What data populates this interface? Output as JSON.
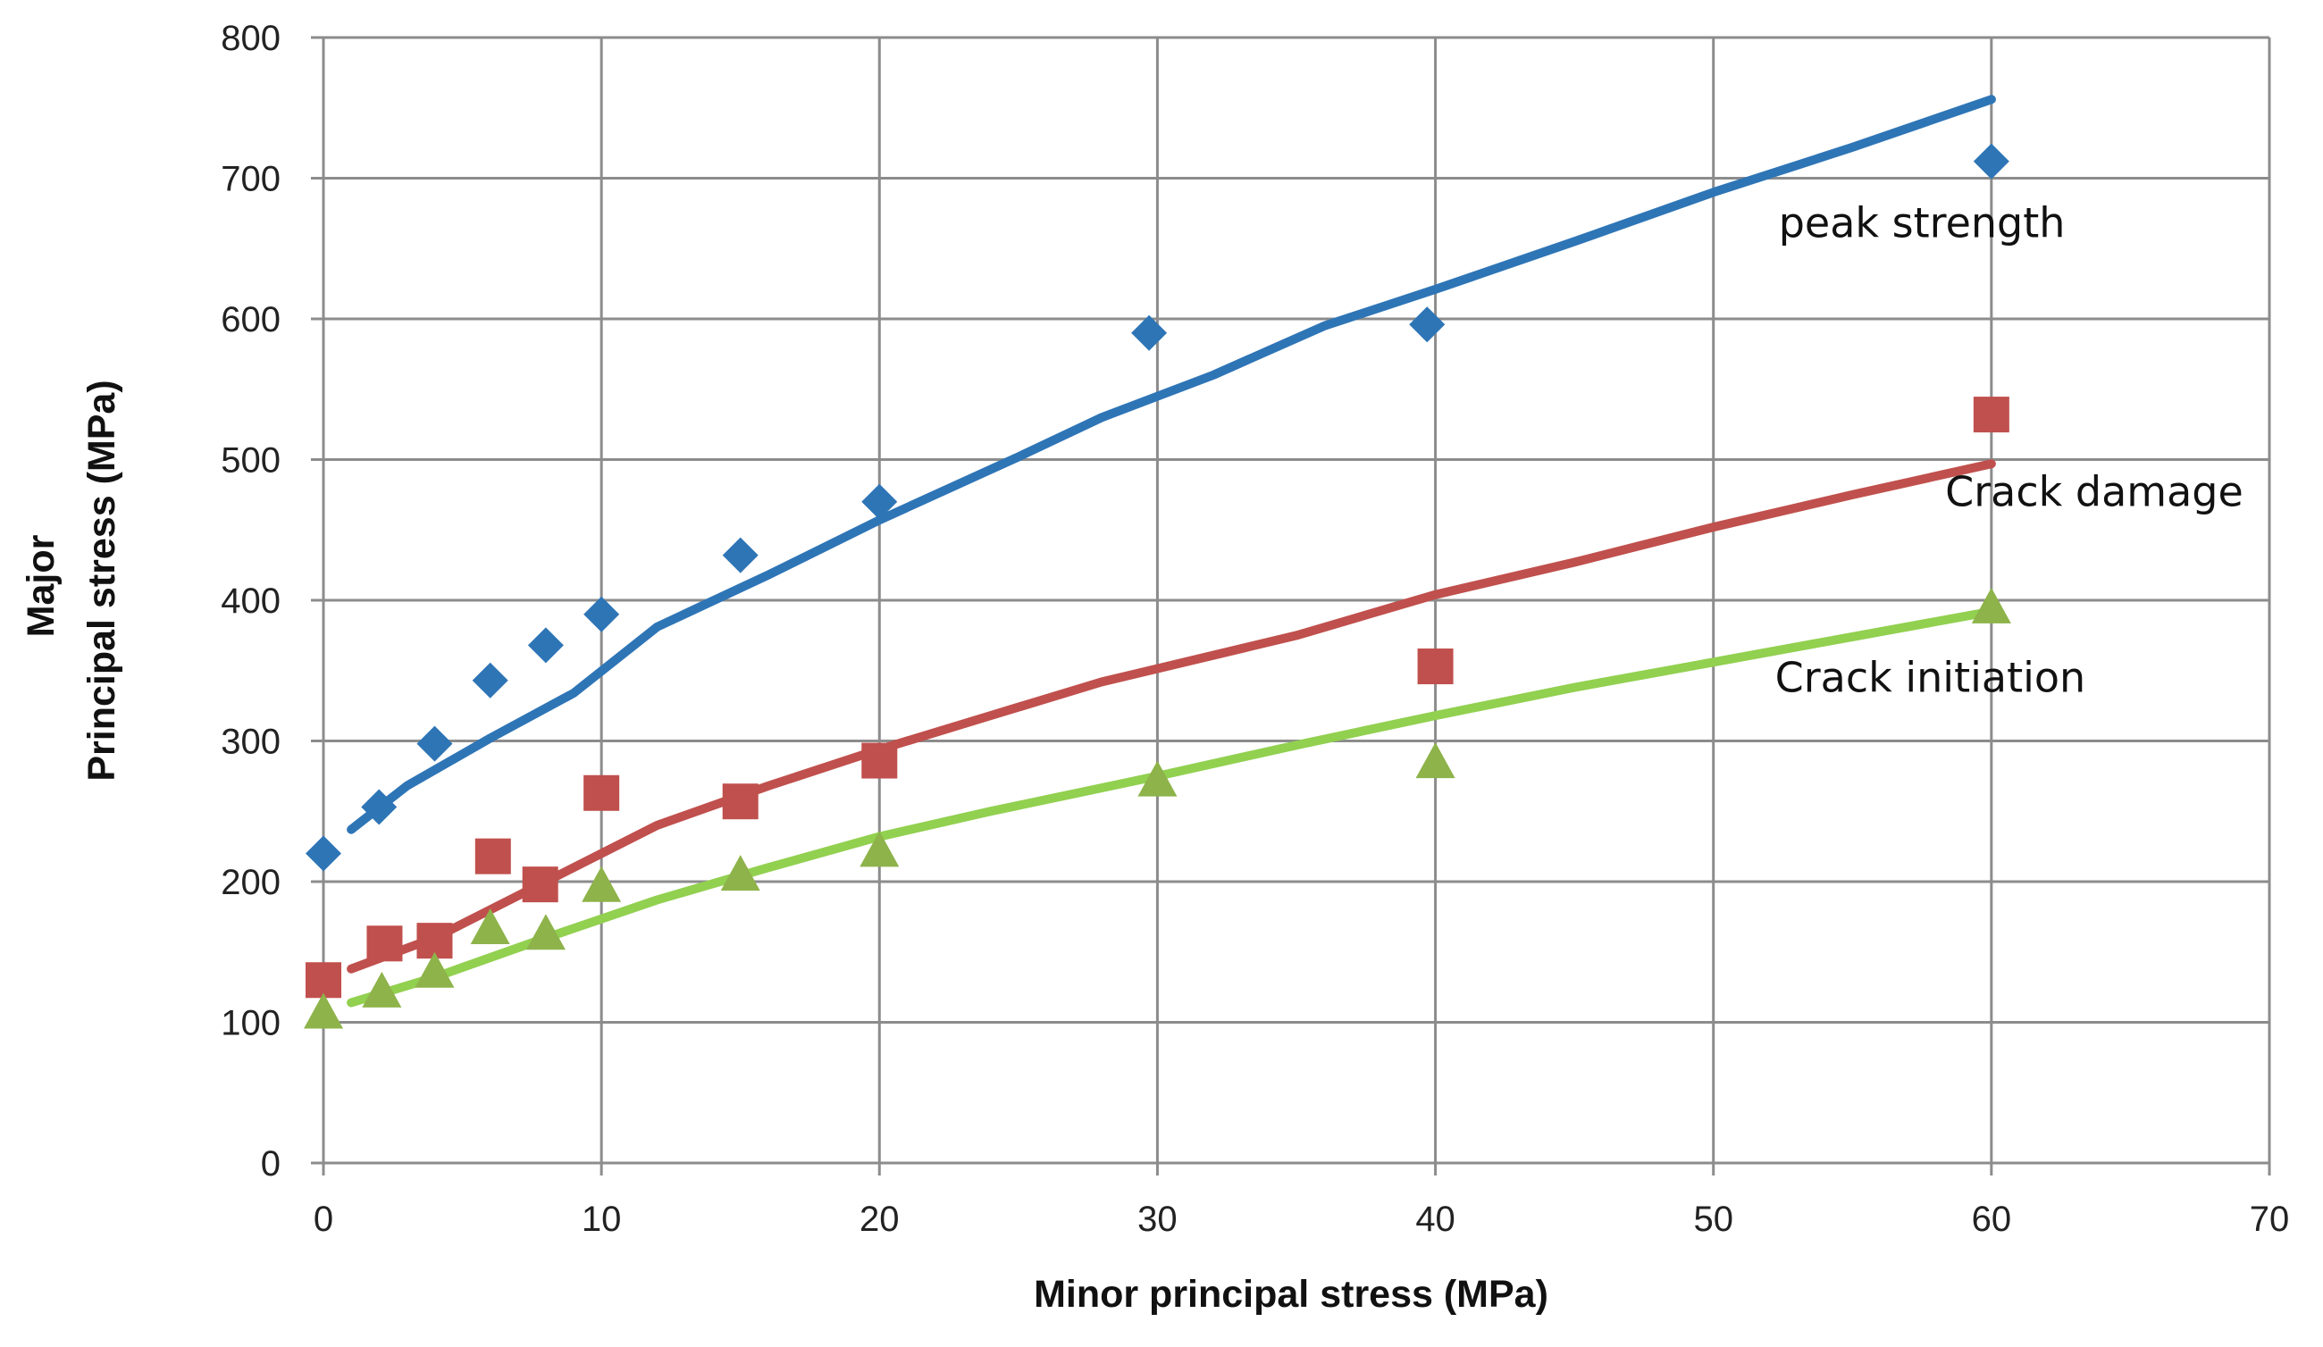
{
  "chart_data": {
    "type": "scatter",
    "title": "",
    "xlabel": "Minor principal stress (MPa)",
    "ylabel_lines": [
      "Major",
      "Principal stress (MPa)"
    ],
    "xlim": [
      0,
      70
    ],
    "ylim": [
      0,
      800
    ],
    "xticks": [
      0,
      10,
      20,
      30,
      40,
      50,
      60,
      70
    ],
    "yticks": [
      0,
      100,
      200,
      300,
      400,
      500,
      600,
      700,
      800
    ],
    "grid": true,
    "series": [
      {
        "name": "peak strength",
        "marker": "diamond",
        "color": "#2E75B6",
        "points": [
          [
            0,
            220
          ],
          [
            2,
            253
          ],
          [
            4,
            298
          ],
          [
            6,
            343
          ],
          [
            8,
            368
          ],
          [
            10,
            390
          ],
          [
            15,
            432
          ],
          [
            20,
            470
          ],
          [
            29.7,
            590
          ],
          [
            39.7,
            596
          ],
          [
            60,
            712
          ]
        ],
        "fit": [
          [
            1,
            237
          ],
          [
            3,
            268
          ],
          [
            6,
            302
          ],
          [
            9,
            334
          ],
          [
            12,
            381
          ],
          [
            16,
            418
          ],
          [
            20,
            457
          ],
          [
            25,
            502
          ],
          [
            28,
            530
          ],
          [
            32,
            560
          ],
          [
            36,
            595
          ],
          [
            40,
            621
          ],
          [
            45,
            655
          ],
          [
            50,
            690
          ],
          [
            55,
            722
          ],
          [
            60,
            756
          ]
        ]
      },
      {
        "name": "Crack damage",
        "marker": "square",
        "color": "#C0504D",
        "points": [
          [
            0,
            130
          ],
          [
            2.2,
            156
          ],
          [
            4,
            158
          ],
          [
            6.1,
            218
          ],
          [
            7.8,
            198
          ],
          [
            10,
            263
          ],
          [
            15,
            257
          ],
          [
            20,
            286
          ],
          [
            40,
            353
          ],
          [
            60,
            532
          ]
        ],
        "fit": [
          [
            1,
            138
          ],
          [
            4,
            160
          ],
          [
            8,
            200
          ],
          [
            12,
            240
          ],
          [
            16,
            268
          ],
          [
            20,
            294
          ],
          [
            24,
            318
          ],
          [
            28,
            342
          ],
          [
            35,
            375
          ],
          [
            40,
            404
          ],
          [
            45,
            427
          ],
          [
            50,
            452
          ],
          [
            55,
            475
          ],
          [
            60,
            497
          ]
        ]
      },
      {
        "name": "Crack initiation",
        "marker": "triangle",
        "color": "#8DB34A",
        "points": [
          [
            0,
            107
          ],
          [
            2.1,
            122
          ],
          [
            4,
            136
          ],
          [
            6,
            167
          ],
          [
            8,
            163
          ],
          [
            10,
            197
          ],
          [
            15,
            205
          ],
          [
            20,
            222
          ],
          [
            30,
            272
          ],
          [
            40,
            285
          ],
          [
            60,
            395
          ]
        ],
        "fit": [
          [
            1,
            114
          ],
          [
            4,
            132
          ],
          [
            8,
            160
          ],
          [
            12,
            187
          ],
          [
            16,
            210
          ],
          [
            20,
            232
          ],
          [
            24,
            250
          ],
          [
            30,
            275
          ],
          [
            35,
            297
          ],
          [
            40,
            318
          ],
          [
            45,
            338
          ],
          [
            50,
            356
          ],
          [
            55,
            374
          ],
          [
            60,
            392
          ]
        ],
        "fit_color": "#92D050"
      }
    ],
    "annotations": [
      {
        "text": "peak strength",
        "x": 57.5,
        "y": 658
      },
      {
        "text": "Crack damage",
        "x": 63.7,
        "y": 467
      },
      {
        "text": "Crack initiation",
        "x": 57.8,
        "y": 335
      }
    ]
  }
}
